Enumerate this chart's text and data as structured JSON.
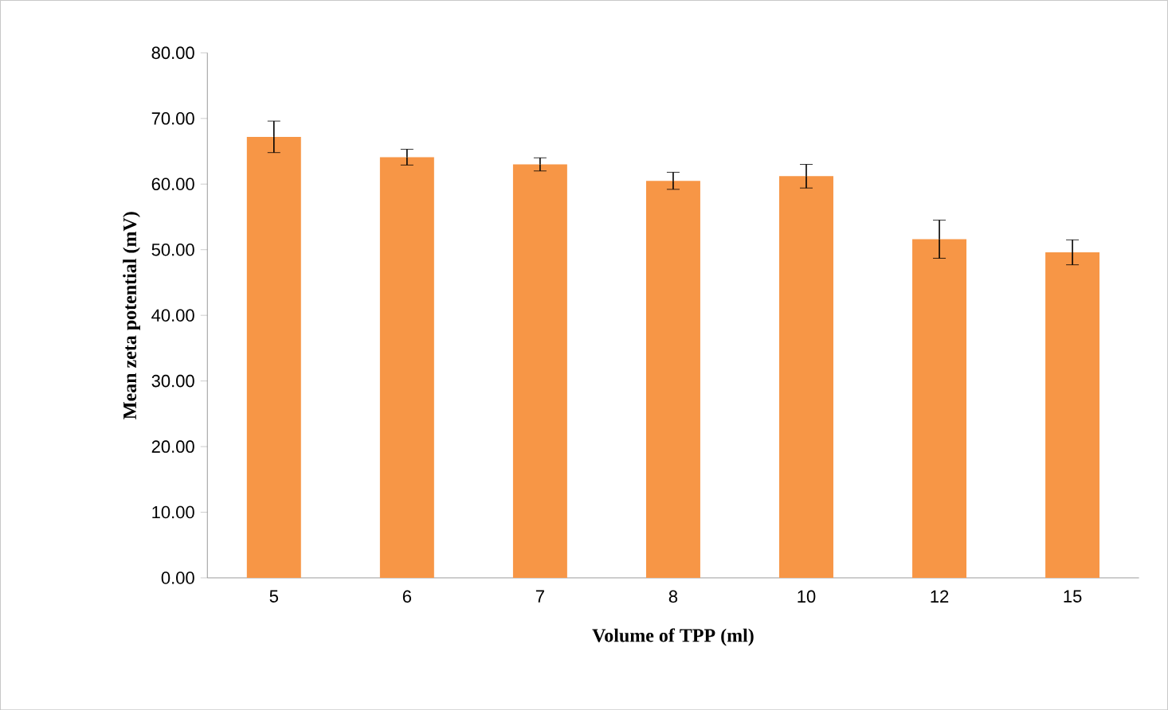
{
  "chart_data": {
    "type": "bar",
    "xlabel": "Volume of TPP (ml)",
    "ylabel": "Mean zeta potential (mV)",
    "categories": [
      "5",
      "6",
      "7",
      "8",
      "10",
      "12",
      "15"
    ],
    "values": [
      67.2,
      64.1,
      63.0,
      60.5,
      61.2,
      51.6,
      49.6
    ],
    "errors": [
      2.4,
      1.2,
      1.0,
      1.3,
      1.8,
      2.9,
      1.9
    ],
    "color": "#f79646",
    "ylim": [
      0,
      80
    ],
    "yticks": [
      {
        "value": 0,
        "label": "0.00"
      },
      {
        "value": 10,
        "label": "10.00"
      },
      {
        "value": 20,
        "label": "20.00"
      },
      {
        "value": 30,
        "label": "30.00"
      },
      {
        "value": 40,
        "label": "40.00"
      },
      {
        "value": 50,
        "label": "50.00"
      },
      {
        "value": 60,
        "label": "60.00"
      },
      {
        "value": 70,
        "label": "70.00"
      },
      {
        "value": 80,
        "label": "80.00"
      }
    ],
    "grid": false
  }
}
